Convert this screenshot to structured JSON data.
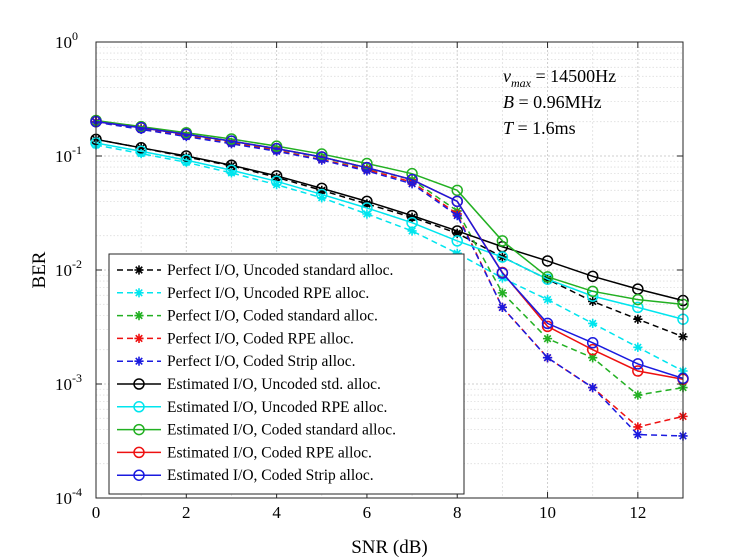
{
  "chart_data": {
    "type": "line",
    "xlabel": "SNR (dB)",
    "ylabel": "BER",
    "yscale": "log",
    "xlim": [
      0,
      13
    ],
    "ylim": [
      0.0001,
      1
    ],
    "xticks": [
      0,
      2,
      4,
      6,
      8,
      10,
      12
    ],
    "yticks": [
      {
        "base": "10",
        "exp": "0"
      },
      {
        "base": "10",
        "exp": "-1"
      },
      {
        "base": "10",
        "exp": "-2"
      },
      {
        "base": "10",
        "exp": "-3"
      },
      {
        "base": "10",
        "exp": "-4"
      }
    ],
    "grid": true,
    "legend_position": "bottom-left",
    "annotations": [
      {
        "lhs": "ν",
        "sub": "max",
        "rhs": " = 14500Hz"
      },
      {
        "lhs": "B",
        "sub": "",
        "rhs": " = 0.96MHz"
      },
      {
        "lhs": "T",
        "sub": "",
        "rhs": " = 1.6ms"
      }
    ],
    "x": [
      0,
      1,
      2,
      3,
      4,
      5,
      6,
      7,
      8,
      9,
      10,
      11,
      12,
      13
    ],
    "series": [
      {
        "name": "Perfect I/O, Uncoded standard alloc.",
        "color": "#000000",
        "dash": "dashed",
        "marker": "asterisk",
        "values": [
          0.14,
          0.118,
          0.098,
          0.082,
          0.065,
          0.05,
          0.038,
          0.029,
          0.021,
          0.013,
          0.0083,
          0.0053,
          0.0037,
          0.0026
        ]
      },
      {
        "name": "Perfect I/O, Uncoded RPE alloc.",
        "color": "#00e5ee",
        "dash": "dashed",
        "marker": "asterisk",
        "values": [
          0.125,
          0.105,
          0.088,
          0.071,
          0.056,
          0.043,
          0.031,
          0.022,
          0.014,
          0.0085,
          0.0055,
          0.0034,
          0.0021,
          0.0013
        ]
      },
      {
        "name": "Perfect I/O, Coded standard alloc.",
        "color": "#22b022",
        "dash": "dashed",
        "marker": "asterisk",
        "values": [
          0.2,
          0.175,
          0.152,
          0.132,
          0.115,
          0.097,
          0.078,
          0.062,
          0.033,
          0.0063,
          0.0025,
          0.0017,
          0.0008,
          0.00093
        ]
      },
      {
        "name": "Perfect I/O, Coded RPE alloc.",
        "color": "#ee1111",
        "dash": "dashed",
        "marker": "asterisk",
        "values": [
          0.2,
          0.173,
          0.15,
          0.13,
          0.112,
          0.093,
          0.076,
          0.059,
          0.031,
          0.0047,
          0.0017,
          0.00093,
          0.00042,
          0.00052
        ]
      },
      {
        "name": "Perfect I/O, Coded Strip alloc.",
        "color": "#1a1adf",
        "dash": "dashed",
        "marker": "asterisk",
        "values": [
          0.198,
          0.171,
          0.148,
          0.128,
          0.11,
          0.092,
          0.074,
          0.057,
          0.03,
          0.0047,
          0.0017,
          0.00093,
          0.00036,
          0.00035
        ]
      },
      {
        "name": "Estimated I/O, Uncoded std. alloc.",
        "color": "#000000",
        "dash": "solid",
        "marker": "circle",
        "values": [
          0.14,
          0.118,
          0.1,
          0.083,
          0.067,
          0.052,
          0.04,
          0.03,
          0.022,
          0.016,
          0.012,
          0.0088,
          0.0068,
          0.0054
        ]
      },
      {
        "name": "Estimated I/O, Uncoded RPE alloc.",
        "color": "#00e5ee",
        "dash": "solid",
        "marker": "circle",
        "values": [
          0.13,
          0.11,
          0.092,
          0.075,
          0.06,
          0.046,
          0.035,
          0.026,
          0.018,
          0.013,
          0.0083,
          0.0059,
          0.0047,
          0.0037
        ]
      },
      {
        "name": "Estimated I/O, Coded standard alloc.",
        "color": "#22b022",
        "dash": "solid",
        "marker": "circle",
        "values": [
          0.205,
          0.181,
          0.16,
          0.141,
          0.122,
          0.104,
          0.086,
          0.07,
          0.05,
          0.018,
          0.0087,
          0.0065,
          0.0055,
          0.005
        ]
      },
      {
        "name": "Estimated I/O, Coded RPE alloc.",
        "color": "#ee1111",
        "dash": "solid",
        "marker": "circle",
        "values": [
          0.2,
          0.177,
          0.155,
          0.135,
          0.116,
          0.098,
          0.079,
          0.062,
          0.04,
          0.0095,
          0.0032,
          0.002,
          0.0013,
          0.0011
        ]
      },
      {
        "name": "Estimated I/O, Coded Strip alloc.",
        "color": "#1a1adf",
        "dash": "solid",
        "marker": "circle",
        "values": [
          0.2,
          0.177,
          0.155,
          0.135,
          0.116,
          0.098,
          0.079,
          0.062,
          0.04,
          0.0094,
          0.0034,
          0.0023,
          0.0015,
          0.00112
        ]
      }
    ]
  }
}
